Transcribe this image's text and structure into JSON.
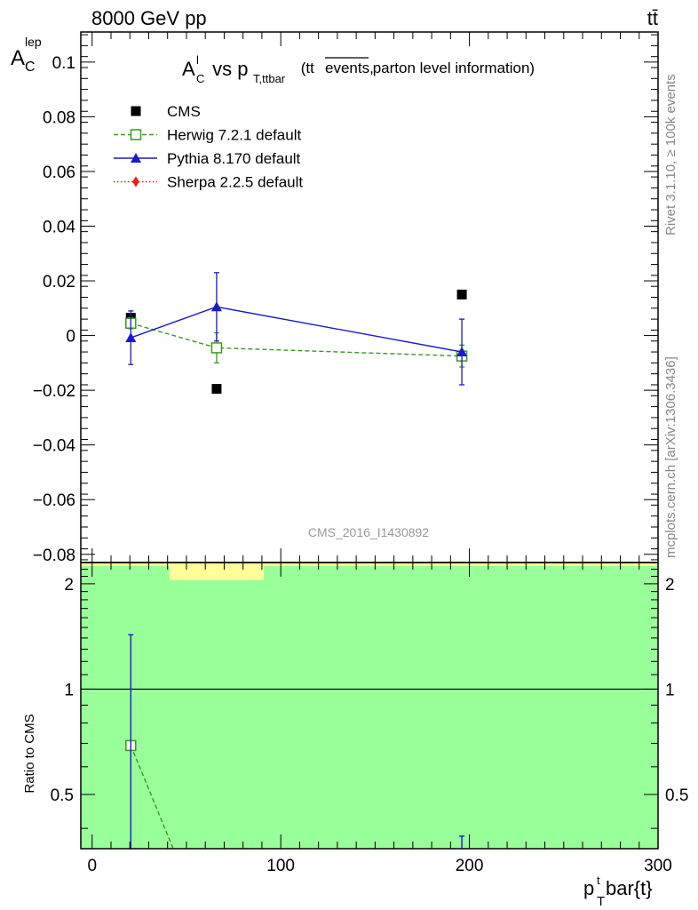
{
  "header": {
    "left": "8000 GeV pp",
    "right": "tt̄"
  },
  "side_text": {
    "rivet": "Rivet 3.1.10, ≥ 100k events",
    "source": "mcplots.cern.ch [arXiv:1306.3436]"
  },
  "watermark": "CMS_2016_I1430892",
  "chart_data": [
    {
      "type": "scatter",
      "title": "A_C^l vs p_T,ttbar (tt̄ events, parton level information)",
      "title_parts": {
        "a": "A",
        "a_sup": "l",
        "a_sub": "C",
        "vs": " vs p",
        "p_sub": "T,ttbar",
        "paren_open": " (tt",
        "paren_over": "events,",
        "paren_rest": " parton level information)"
      },
      "ylabel": "A",
      "ylabel_sup": "lep",
      "ylabel_sub": "C",
      "xlabel": "p",
      "xlabel_sup": "t",
      "xlabel_sub": "T",
      "xlabel_rest": "bar{t}",
      "xlim": [
        -6,
        300
      ],
      "ylim": [
        -0.083,
        0.111
      ],
      "yticks": [
        -0.08,
        -0.06,
        -0.04,
        -0.02,
        0,
        0.02,
        0.04,
        0.06,
        0.08,
        0.1
      ],
      "ytick_labels": [
        "−0.08",
        "−0.06",
        "−0.04",
        "−0.02",
        "0",
        "0.02",
        "0.04",
        "0.06",
        "0.08",
        "0.1"
      ],
      "legend_position": "top-left",
      "series": [
        {
          "name": "CMS",
          "color": "#000000",
          "marker": "square-filled",
          "line": "none",
          "x": [
            20.5,
            66,
            196
          ],
          "y": [
            0.0065,
            -0.0195,
            0.015
          ],
          "err": [
            0,
            0,
            0
          ]
        },
        {
          "name": "Herwig 7.2.1 default",
          "color": "#3a9a20",
          "marker": "square-open",
          "line": "dashed",
          "x": [
            20.5,
            66,
            196
          ],
          "y": [
            0.0045,
            -0.0045,
            -0.0075
          ],
          "err": [
            0.002,
            0.0055,
            0.004
          ]
        },
        {
          "name": "Pythia 8.170 default",
          "color": "#1a1acc",
          "marker": "triangle-filled",
          "line": "solid",
          "x": [
            20.5,
            66,
            196
          ],
          "y": [
            -0.0008,
            0.0105,
            -0.006
          ],
          "err": [
            0.0098,
            0.0125,
            0.012
          ]
        },
        {
          "name": "Sherpa 2.2.5 default",
          "color": "#e82020",
          "marker": "diamond-filled",
          "line": "dotted",
          "x": [],
          "y": [],
          "err": []
        }
      ]
    },
    {
      "type": "line",
      "ylabel": "Ratio to CMS",
      "xlim": [
        -6,
        300
      ],
      "ylim": [
        0.35,
        2.3
      ],
      "yticks": [
        0.5,
        1,
        2
      ],
      "ytick_labels": [
        "0.5",
        "1",
        "2"
      ],
      "xticks": [
        0,
        100,
        200,
        300
      ],
      "xtick_labels": [
        "0",
        "100",
        "200",
        "300"
      ],
      "reference_line": 1,
      "bands": [
        {
          "color": "#ffff99",
          "x": [
            -6,
            300
          ],
          "y": [
            0.35,
            2.3
          ]
        },
        {
          "color": "#99ff99",
          "x": [
            -6,
            300
          ],
          "y": [
            0.35,
            2.25
          ]
        },
        {
          "color": "#ffff99",
          "x": [
            41,
            91
          ],
          "y": [
            2.05,
            2.25
          ]
        }
      ],
      "series": [
        {
          "name": "Herwig 7.2.1 default",
          "color": "#3a9a20",
          "line": "dashed",
          "points": [
            [
              20.5,
              0.69
            ],
            [
              43,
              0.35
            ]
          ],
          "markers": [
            [
              20.5,
              0.69
            ]
          ]
        },
        {
          "name": "Pythia 8.170 default",
          "color": "#1a1acc",
          "error_bars": [
            [
              20.5,
              0.35,
              1.43
            ],
            [
              196,
              0.35,
              0.38
            ]
          ]
        }
      ]
    }
  ]
}
